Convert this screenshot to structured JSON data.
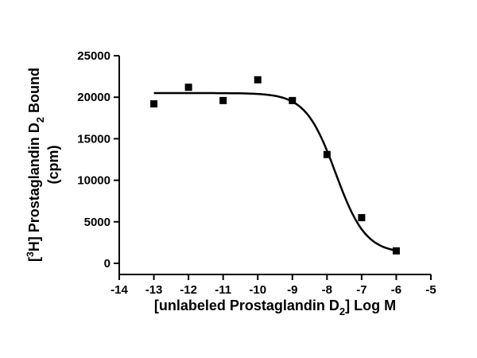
{
  "chart_data": {
    "type": "scatter",
    "x": [
      -13,
      -12,
      -11,
      -10,
      -9,
      -8,
      -7,
      -6
    ],
    "y": [
      19200,
      21200,
      19600,
      22100,
      19600,
      13100,
      5500,
      1500
    ],
    "fit_curve": {
      "model": "sigmoidal dose-response",
      "top": 20500,
      "bottom": 1200,
      "log_ec50": -7.75
    },
    "xlim": [
      -14,
      -5
    ],
    "ylim": [
      0,
      25000
    ],
    "xticks": [
      "-14",
      "-13",
      "-12",
      "-11",
      "-10",
      "-9",
      "-8",
      "-7",
      "-6",
      "-5"
    ],
    "yticks": [
      "0",
      "5000",
      "10000",
      "15000",
      "20000",
      "25000"
    ],
    "xlabel": {
      "prefix": "[unlabeled Prostaglandin D",
      "sub": "2",
      "suffix": "] Log M"
    },
    "ylabel": {
      "line1": {
        "open": "[",
        "sup": "3",
        "rest": "H] Prostaglandin D",
        "sub": "2",
        "suffix": " Bound"
      },
      "line2": "(cpm)"
    },
    "grid": false,
    "legend": "none",
    "marker": "square",
    "color": "#000000"
  }
}
